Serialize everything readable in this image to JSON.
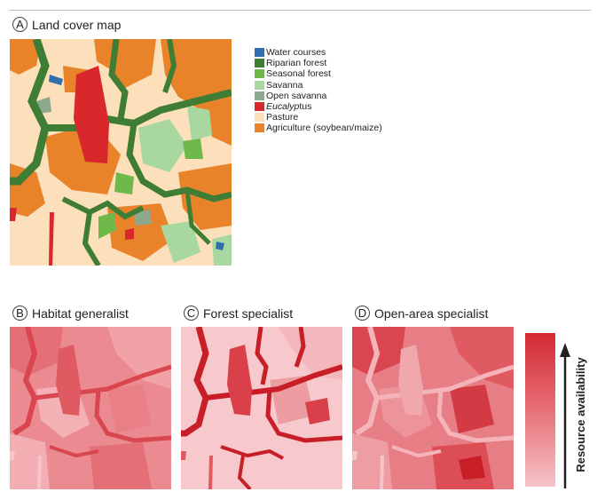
{
  "panels": {
    "a": {
      "letter": "A",
      "title": "Land cover map"
    },
    "b": {
      "letter": "B",
      "title": "Habitat generalist"
    },
    "c": {
      "letter": "C",
      "title": "Forest specialist"
    },
    "d": {
      "letter": "D",
      "title": "Open-area specialist"
    }
  },
  "legend": [
    {
      "label": "Water courses",
      "color": "#2f6fb0"
    },
    {
      "label": "Riparian forest",
      "color": "#3f7d34"
    },
    {
      "label": "Seasonal forest",
      "color": "#6fb84a"
    },
    {
      "label": "Savanna",
      "color": "#a8d8a0"
    },
    {
      "label": "Open savanna",
      "color": "#8ea88e"
    },
    {
      "label_italic": "Eucalyp",
      "label_rest": "tus",
      "color": "#d8282c"
    },
    {
      "label": "Pasture",
      "color": "#fbe0bb"
    },
    {
      "label": "Agriculture (soybean/maize)",
      "color": "#e8832a"
    }
  ],
  "colorbar": {
    "axis_title": "Resource availability",
    "high_color": "#d42a32",
    "low_color": "#f6c4c8"
  }
}
